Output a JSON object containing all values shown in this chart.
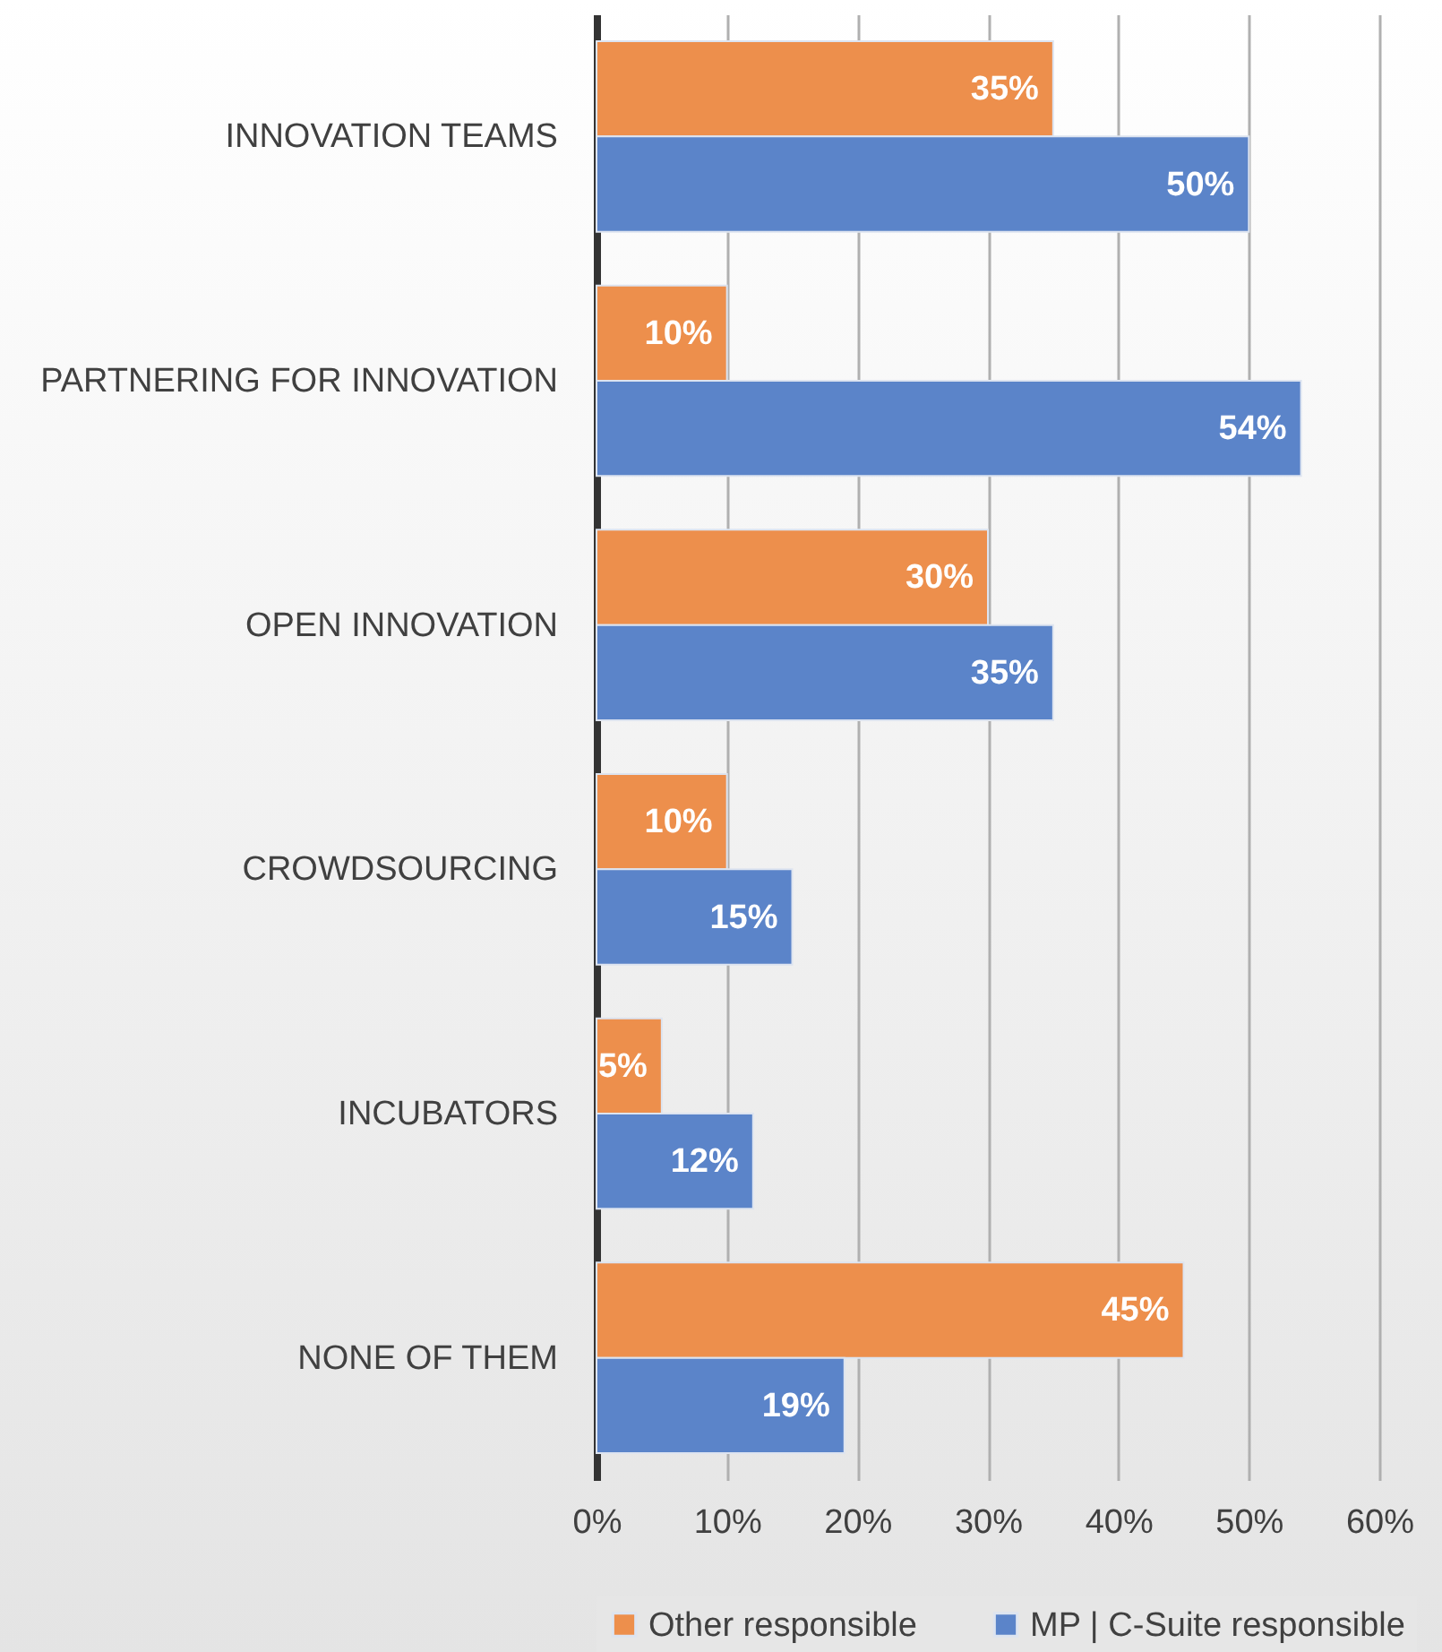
{
  "chart_data": {
    "type": "bar",
    "orientation": "horizontal",
    "categories": [
      "INNOVATION TEAMS",
      "PARTNERING FOR INNOVATION",
      "OPEN INNOVATION",
      "CROWDSOURCING",
      "INCUBATORS",
      "NONE OF THEM"
    ],
    "series": [
      {
        "name": "Other responsible",
        "color": "#ed8f4c",
        "values": [
          35,
          10,
          30,
          10,
          5,
          45
        ],
        "value_labels": [
          "35%",
          "10%",
          "30%",
          "10%",
          "5%",
          "45%"
        ]
      },
      {
        "name": "MP | C-Suite responsible",
        "color": "#5b84c9",
        "values": [
          50,
          54,
          35,
          15,
          12,
          19
        ],
        "value_labels": [
          "50%",
          "54%",
          "35%",
          "15%",
          "12%",
          "19%"
        ]
      }
    ],
    "xlim": [
      0,
      60
    ],
    "xticks": [
      {
        "value": 0,
        "label": "0%"
      },
      {
        "value": 10,
        "label": "10%"
      },
      {
        "value": 20,
        "label": "20%"
      },
      {
        "value": 30,
        "label": "30%"
      },
      {
        "value": 40,
        "label": "40%"
      },
      {
        "value": 50,
        "label": "50%"
      },
      {
        "value": 60,
        "label": "60%"
      }
    ],
    "grid": "x",
    "legend": "bottom"
  }
}
